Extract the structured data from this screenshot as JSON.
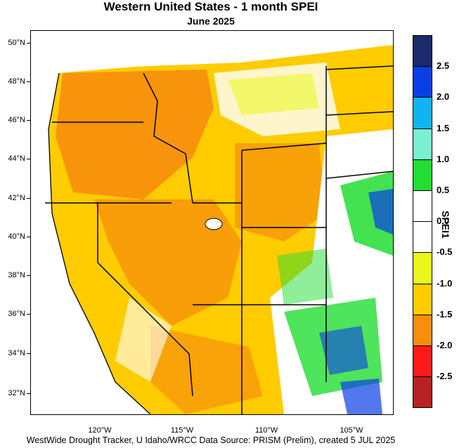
{
  "title": "Western United States - 1 month SPEI",
  "subtitle": "June 2025",
  "footer": "WestWide Drought Tracker, U Idaho/WRCC Data Source: PRISM (Prelim), created  5 JUL 2025",
  "colorbar": {
    "title": "SPEI1",
    "labels": [
      "2.5",
      "2.0",
      "1.5",
      "1.0",
      "0.5",
      "0.0",
      "-0.5",
      "-1.0",
      "-1.5",
      "-2.0",
      "-2.5"
    ],
    "colors": [
      "#1a2a6c",
      "#0a3fe6",
      "#10b4f0",
      "#79f0cf",
      "#22dd33",
      "#ffffff",
      "#ffffff",
      "#e9f71a",
      "#ffcc00",
      "#f78e0c",
      "#ff1a1a",
      "#b82222"
    ]
  },
  "map": {
    "lat_labels": [
      "50°N",
      "48°N",
      "46°N",
      "44°N",
      "42°N",
      "40°N",
      "38°N",
      "36°N",
      "34°N",
      "32°N"
    ],
    "lon_labels": [
      "120°W",
      "115°W",
      "110°W",
      "105°W"
    ]
  }
}
